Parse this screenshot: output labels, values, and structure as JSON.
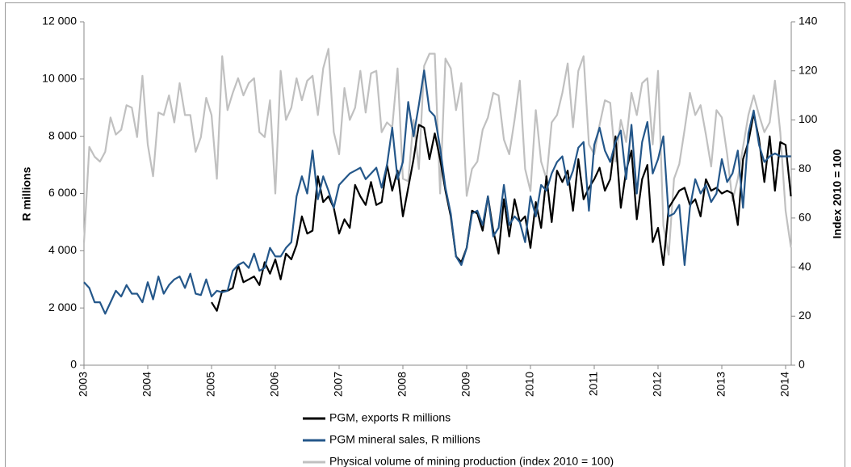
{
  "chart_data": {
    "type": "line",
    "y_label": "R millions",
    "y2_label": "Index 2010 = 100",
    "categories": [
      "2003",
      null,
      null,
      null,
      null,
      null,
      null,
      null,
      null,
      null,
      null,
      null,
      "2004",
      null,
      null,
      null,
      null,
      null,
      null,
      null,
      null,
      null,
      null,
      null,
      "2005",
      null,
      null,
      null,
      null,
      null,
      null,
      null,
      null,
      null,
      null,
      null,
      "2006",
      null,
      null,
      null,
      null,
      null,
      null,
      null,
      null,
      null,
      null,
      null,
      "2007",
      null,
      null,
      null,
      null,
      null,
      null,
      null,
      null,
      null,
      null,
      null,
      "2008",
      null,
      null,
      null,
      null,
      null,
      null,
      null,
      null,
      null,
      null,
      null,
      "2009",
      null,
      null,
      null,
      null,
      null,
      null,
      null,
      null,
      null,
      null,
      null,
      "2010",
      null,
      null,
      null,
      null,
      null,
      null,
      null,
      null,
      null,
      null,
      null,
      "2011",
      null,
      null,
      null,
      null,
      null,
      null,
      null,
      null,
      null,
      null,
      null,
      "2012",
      null,
      null,
      null,
      null,
      null,
      null,
      null,
      null,
      null,
      null,
      null,
      "2013",
      null,
      null,
      null,
      null,
      null,
      null,
      null,
      null,
      null,
      null,
      null,
      "2014",
      null
    ],
    "ylim": [
      0,
      12000
    ],
    "yticks": [
      0,
      {
        "value": 2000,
        "label": "2 000"
      },
      {
        "value": 4000,
        "label": "4 000"
      },
      {
        "value": 6000,
        "label": "6 000"
      },
      {
        "value": 8000,
        "label": "8 000"
      },
      {
        "value": 10000,
        "label": "10 000"
      },
      {
        "value": 12000,
        "label": "12 000"
      }
    ],
    "y2lim": [
      0,
      140
    ],
    "y2ticks": [
      0,
      20,
      40,
      60,
      80,
      100,
      120,
      140
    ],
    "grid": false,
    "series": [
      {
        "name": "Physical volume of mining production (index 2010 = 100)",
        "color": "#c0c0c0",
        "axis": "y2",
        "values": [
          50,
          89,
          85,
          83,
          87,
          101,
          94,
          96,
          106,
          105,
          93,
          118,
          90,
          77,
          103,
          102,
          110,
          99,
          115,
          102,
          102,
          87,
          93,
          109,
          102,
          76,
          126,
          104,
          111,
          117,
          110,
          115,
          117,
          95,
          93,
          108,
          70,
          120,
          100,
          105,
          117,
          108,
          116,
          118,
          102,
          121,
          129,
          95,
          86,
          113,
          100,
          105,
          120,
          103,
          119,
          120,
          95,
          99,
          97,
          121,
          76,
          75,
          100,
          80,
          122,
          127,
          127,
          70,
          125,
          121,
          104,
          115,
          69,
          80,
          83,
          96,
          101,
          111,
          110,
          92,
          86,
          100,
          116,
          80,
          71,
          104,
          83,
          76,
          99,
          102,
          111,
          123,
          97,
          120,
          126,
          90,
          86,
          98,
          108,
          107,
          83,
          100,
          91,
          111,
          102,
          115,
          117,
          90,
          120,
          57,
          45,
          76,
          82,
          96,
          111,
          102,
          106,
          94,
          81,
          104,
          101,
          86,
          67,
          76,
          89,
          102,
          110,
          102,
          95,
          99,
          116,
          95,
          63,
          48
        ]
      },
      {
        "name": "PGM, exports R millions",
        "color": "#000000",
        "values": [
          null,
          null,
          null,
          null,
          null,
          null,
          null,
          null,
          null,
          null,
          null,
          null,
          null,
          null,
          null,
          null,
          null,
          null,
          null,
          null,
          null,
          null,
          null,
          null,
          2200,
          1900,
          2600,
          2600,
          2700,
          3500,
          2900,
          3000,
          3100,
          2800,
          3600,
          3200,
          3700,
          3000,
          3900,
          3700,
          4200,
          5200,
          4600,
          4700,
          6600,
          5700,
          5900,
          5500,
          4600,
          5100,
          4800,
          6300,
          5900,
          5600,
          6400,
          5600,
          5700,
          7000,
          6100,
          6800,
          5200,
          6200,
          7200,
          8400,
          8300,
          7200,
          8100,
          7200,
          6100,
          5200,
          3800,
          3600,
          4100,
          5400,
          5300,
          4700,
          5900,
          4700,
          3900,
          5800,
          4500,
          5800,
          5000,
          5200,
          4100,
          5700,
          4800,
          6600,
          5000,
          6800,
          6400,
          6800,
          5400,
          7200,
          5800,
          6200,
          6500,
          6900,
          6100,
          6500,
          8000,
          5500,
          6800,
          7500,
          5100,
          6500,
          7000,
          4300,
          4800,
          3500,
          5500,
          5800,
          6100,
          6200,
          5600,
          5800,
          5200,
          6500,
          6100,
          6200,
          6000,
          6100,
          6000,
          4900,
          7200,
          7800,
          8800,
          7900,
          6400,
          8000,
          6100,
          7800,
          7700,
          5900
        ]
      },
      {
        "name": "PGM mineral sales, R millions",
        "color": "#24578a",
        "values": [
          2900,
          2700,
          2200,
          2200,
          1800,
          2200,
          2600,
          2400,
          2800,
          2500,
          2500,
          2200,
          2900,
          2300,
          3100,
          2500,
          2800,
          3000,
          3100,
          2700,
          3200,
          2500,
          2450,
          3000,
          2400,
          2600,
          2550,
          2600,
          3300,
          3500,
          3600,
          3400,
          3900,
          3300,
          3400,
          4100,
          3800,
          3800,
          4100,
          4300,
          5900,
          6600,
          6000,
          7500,
          5800,
          6600,
          6100,
          5500,
          6300,
          6500,
          6700,
          6800,
          6900,
          6500,
          6700,
          6900,
          6200,
          7000,
          8300,
          6500,
          7100,
          9200,
          8000,
          9100,
          10300,
          8900,
          8700,
          7600,
          6200,
          5300,
          3800,
          3500,
          4100,
          5300,
          5400,
          4900,
          5900,
          4500,
          4800,
          6300,
          4900,
          5200,
          5000,
          4300,
          5900,
          5200,
          6300,
          6100,
          6700,
          7100,
          7300,
          6300,
          6800,
          7600,
          7800,
          5400,
          7700,
          8300,
          7500,
          7100,
          7800,
          8200,
          6500,
          8400,
          6000,
          7800,
          8500,
          6700,
          7200,
          8000,
          5200,
          5300,
          5600,
          3500,
          5500,
          6500,
          6000,
          6300,
          5700,
          6000,
          7200,
          6400,
          6700,
          7500,
          5500,
          8100,
          8900,
          7700,
          7100,
          7300,
          7400,
          7300,
          7300,
          7300
        ]
      }
    ],
    "legend_order": [
      1,
      2,
      0
    ]
  }
}
